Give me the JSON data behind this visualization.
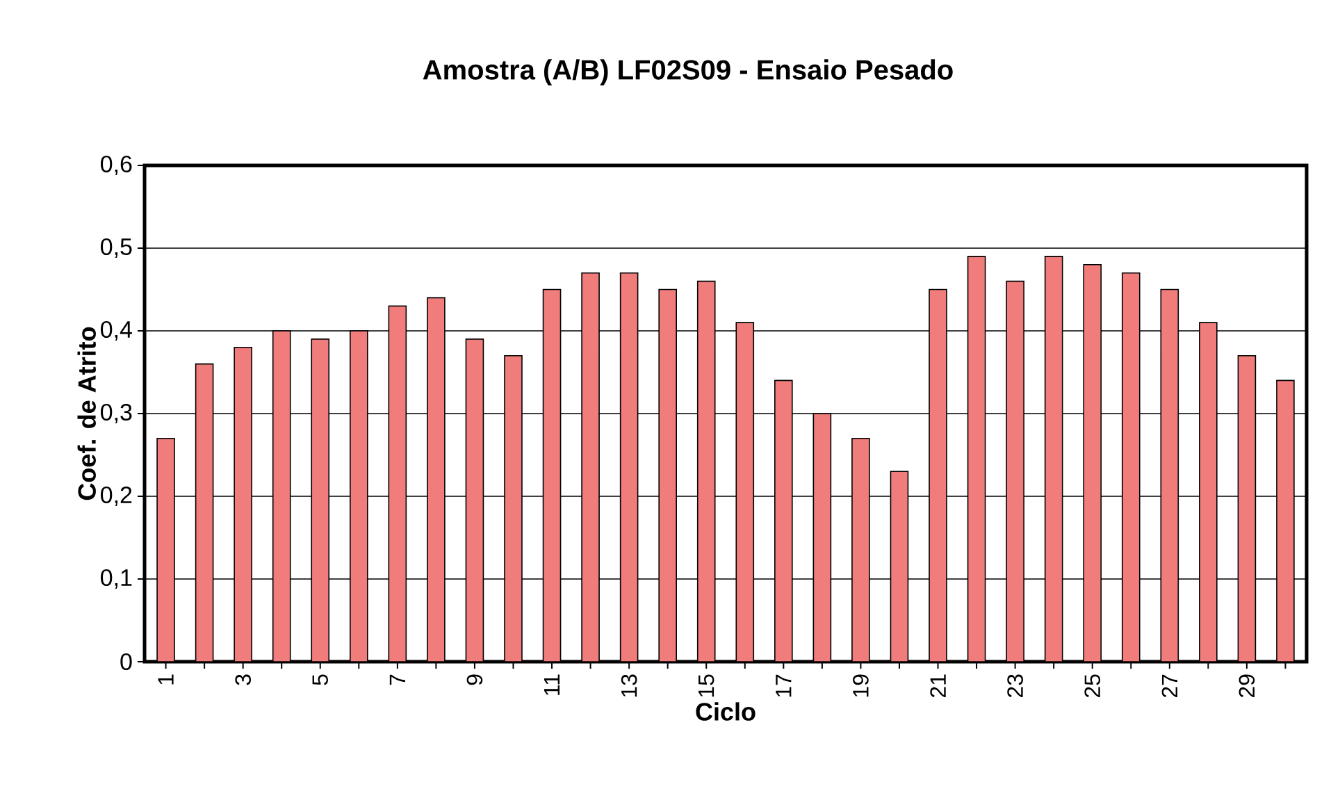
{
  "chart_data": {
    "type": "bar",
    "title": "Amostra (A/B) LF02S09 - Ensaio Pesado",
    "xlabel": "Ciclo",
    "ylabel": "Coef. de Atrito",
    "categories": [
      "1",
      null,
      "3",
      null,
      "5",
      null,
      "7",
      null,
      "9",
      null,
      "11",
      null,
      "13",
      null,
      "15",
      null,
      "17",
      null,
      "19",
      null,
      "21",
      null,
      "23",
      null,
      "25",
      null,
      "27",
      null,
      "29",
      null
    ],
    "values": [
      0.27,
      0.36,
      0.38,
      0.4,
      0.39,
      0.4,
      0.43,
      0.44,
      0.39,
      0.37,
      0.45,
      0.47,
      0.47,
      0.45,
      0.46,
      0.41,
      0.34,
      0.3,
      0.27,
      0.23,
      0.45,
      0.49,
      0.46,
      0.49,
      0.48,
      0.47,
      0.45,
      0.41,
      0.37,
      0.34
    ],
    "color": "#f07c7c",
    "ylim": [
      0,
      0.6
    ],
    "yticks": [
      {
        "value": 0,
        "label": "0"
      },
      {
        "value": 0.1,
        "label": "0,1"
      },
      {
        "value": 0.2,
        "label": "0,2"
      },
      {
        "value": 0.3,
        "label": "0,3"
      },
      {
        "value": 0.4,
        "label": "0,4"
      },
      {
        "value": 0.5,
        "label": "0,5"
      },
      {
        "value": 0.6,
        "label": "0,6"
      }
    ],
    "grid": "y"
  }
}
